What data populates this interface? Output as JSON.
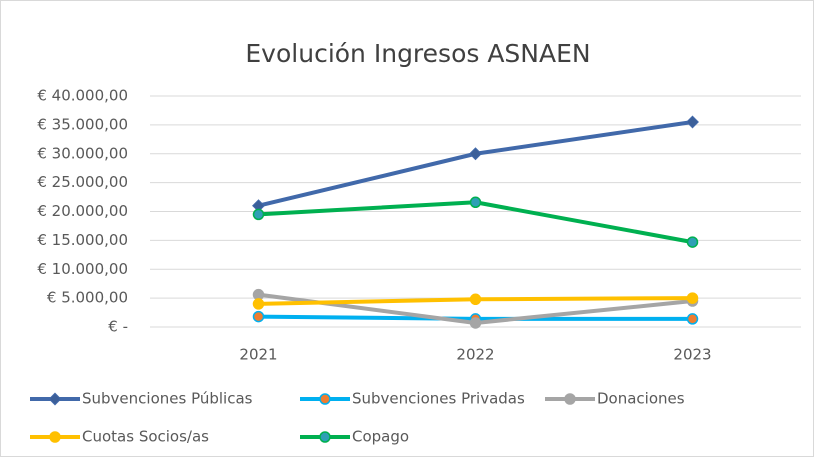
{
  "chart_data": {
    "type": "line",
    "title": "Evolución Ingresos ASNAEN",
    "categories": [
      "2021",
      "2022",
      "2023"
    ],
    "series": [
      {
        "name": "Subvenciones Públicas",
        "color": "#4169aa",
        "marker_color": "#3b5f99",
        "marker": "diamond",
        "values": [
          21000,
          30000,
          35500
        ]
      },
      {
        "name": "Subvenciones Privadas",
        "color": "#00b0f0",
        "marker_color": "#ed7d31",
        "marker": "circle",
        "values": [
          1800,
          1400,
          1400
        ]
      },
      {
        "name": "Donaciones",
        "color": "#a5a5a5",
        "marker_color": "#a5a5a5",
        "marker": "circle",
        "values": [
          5600,
          700,
          4500
        ]
      },
      {
        "name": "Cuotas Socios/as",
        "color": "#ffc000",
        "marker_color": "#ffc000",
        "marker": "circle",
        "values": [
          4000,
          4800,
          5000
        ]
      },
      {
        "name": "Copago",
        "color": "#00b050",
        "marker_color": "#2e9fb5",
        "marker": "circle",
        "values": [
          19500,
          21600,
          14700
        ]
      }
    ],
    "ylim": [
      0,
      40000
    ],
    "yticks": [
      {
        "value": 0,
        "label": "€ -"
      },
      {
        "value": 5000,
        "label": "€ 5.000,00"
      },
      {
        "value": 10000,
        "label": "€ 10.000,00"
      },
      {
        "value": 15000,
        "label": "€ 15.000,00"
      },
      {
        "value": 20000,
        "label": "€ 20.000,00"
      },
      {
        "value": 25000,
        "label": "€ 25.000,00"
      },
      {
        "value": 30000,
        "label": "€ 30.000,00"
      },
      {
        "value": 35000,
        "label": "€ 35.000,00"
      },
      {
        "value": 40000,
        "label": "€ 40.000,00"
      }
    ],
    "grid": true
  }
}
